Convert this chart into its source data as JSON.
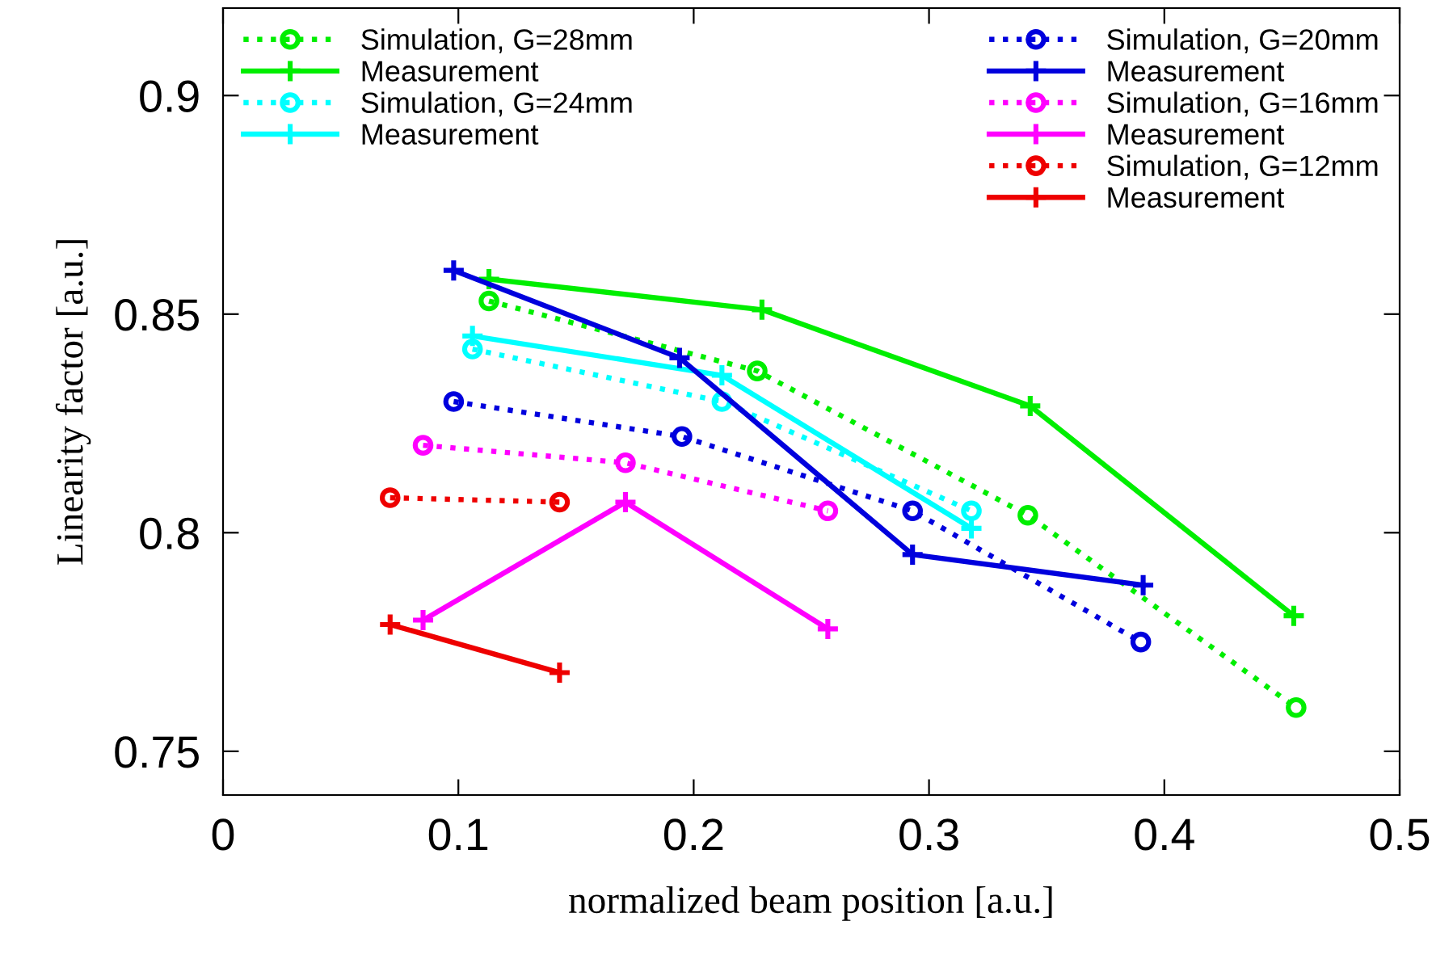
{
  "chart_data": {
    "type": "line",
    "xlabel": "normalized beam position [a.u.]",
    "ylabel": "Linearity factor [a.u.]",
    "xlim": [
      0,
      0.5
    ],
    "ylim": [
      0.74,
      0.92
    ],
    "xticks": [
      0,
      0.1,
      0.2,
      0.3,
      0.4,
      0.5
    ],
    "yticks": [
      0.75,
      0.8,
      0.85,
      0.9
    ],
    "grid": false,
    "legend": "top",
    "series": [
      {
        "name": "Simulation, G=28mm",
        "color": "#00ee00",
        "marker": "circle",
        "line_style": "dotted",
        "x": [
          0.113,
          0.227,
          0.342,
          0.456
        ],
        "values": [
          0.853,
          0.837,
          0.804,
          0.76
        ]
      },
      {
        "name": "Measurement",
        "color": "#00ee00",
        "marker": "cross",
        "line_style": "solid",
        "x": [
          0.113,
          0.229,
          0.343,
          0.455
        ],
        "values": [
          0.858,
          0.851,
          0.829,
          0.781
        ]
      },
      {
        "name": "Simulation, G=24mm",
        "color": "#00ffff",
        "marker": "circle",
        "line_style": "dotted",
        "x": [
          0.106,
          0.212,
          0.318
        ],
        "values": [
          0.842,
          0.83,
          0.805
        ]
      },
      {
        "name": "Measurement",
        "color": "#00ffff",
        "marker": "cross",
        "line_style": "solid",
        "x": [
          0.106,
          0.212,
          0.318
        ],
        "values": [
          0.845,
          0.836,
          0.801
        ]
      },
      {
        "name": "Simulation, G=20mm",
        "color": "#0000dd",
        "marker": "circle",
        "line_style": "dotted",
        "x": [
          0.098,
          0.195,
          0.293,
          0.39
        ],
        "values": [
          0.83,
          0.822,
          0.805,
          0.775
        ]
      },
      {
        "name": "Measurement",
        "color": "#0000dd",
        "marker": "cross",
        "line_style": "solid",
        "x": [
          0.098,
          0.194,
          0.293,
          0.391
        ],
        "values": [
          0.86,
          0.84,
          0.795,
          0.788
        ]
      },
      {
        "name": "Simulation, G=16mm",
        "color": "#ff00ff",
        "marker": "circle",
        "line_style": "dotted",
        "x": [
          0.085,
          0.171,
          0.257
        ],
        "values": [
          0.82,
          0.816,
          0.805
        ]
      },
      {
        "name": "Measurement",
        "color": "#ff00ff",
        "marker": "cross",
        "line_style": "solid",
        "x": [
          0.085,
          0.171,
          0.257
        ],
        "values": [
          0.78,
          0.807,
          0.778
        ]
      },
      {
        "name": "Simulation, G=12mm",
        "color": "#ee0000",
        "marker": "circle",
        "line_style": "dotted",
        "x": [
          0.071,
          0.143
        ],
        "values": [
          0.808,
          0.807
        ]
      },
      {
        "name": "Measurement",
        "color": "#ee0000",
        "marker": "cross",
        "line_style": "solid",
        "x": [
          0.071,
          0.143
        ],
        "values": [
          0.779,
          0.768
        ]
      }
    ]
  }
}
